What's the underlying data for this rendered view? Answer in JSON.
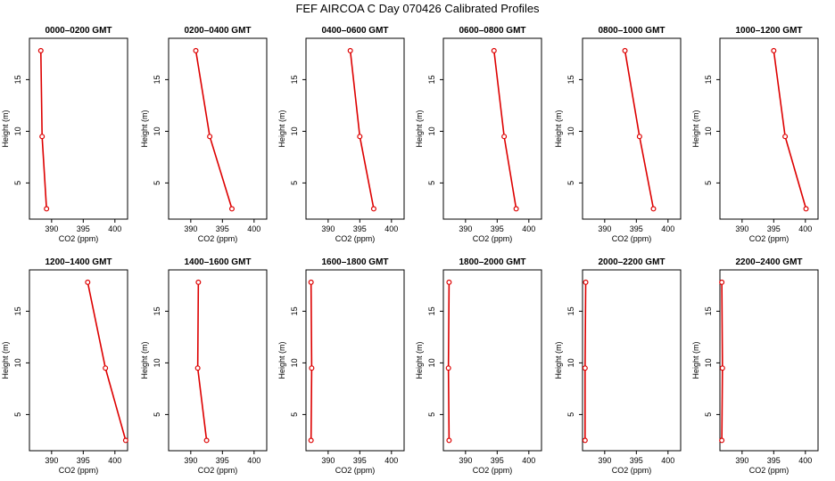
{
  "title": "FEF AIRCOA C  Day 070426  Calibrated Profiles",
  "colors": {
    "series": "#dd0000",
    "frame": "#000000"
  },
  "chart_data": {
    "type": "line",
    "xlabel": "CO2 (ppm)",
    "ylabel": "Height (m)",
    "xlim": [
      386.5,
      402
    ],
    "ylim": [
      1.5,
      19
    ],
    "xticks": [
      390,
      395,
      400
    ],
    "yticks": [
      5,
      10,
      15
    ],
    "panels": [
      {
        "title": "0000–0200 GMT",
        "points": [
          {
            "x": 388.3,
            "y": 17.8
          },
          {
            "x": 388.5,
            "y": 9.5
          },
          {
            "x": 389.2,
            "y": 2.5
          }
        ]
      },
      {
        "title": "0200–0400 GMT",
        "points": [
          {
            "x": 390.8,
            "y": 17.8
          },
          {
            "x": 393.0,
            "y": 9.5
          },
          {
            "x": 396.5,
            "y": 2.5
          }
        ]
      },
      {
        "title": "0400–0600 GMT",
        "points": [
          {
            "x": 393.5,
            "y": 17.8
          },
          {
            "x": 395.0,
            "y": 9.5
          },
          {
            "x": 397.2,
            "y": 2.5
          }
        ]
      },
      {
        "title": "0600–0800 GMT",
        "points": [
          {
            "x": 394.5,
            "y": 17.8
          },
          {
            "x": 396.1,
            "y": 9.5
          },
          {
            "x": 398.0,
            "y": 2.5
          }
        ]
      },
      {
        "title": "0800–1000 GMT",
        "points": [
          {
            "x": 393.2,
            "y": 17.8
          },
          {
            "x": 395.5,
            "y": 9.5
          },
          {
            "x": 397.7,
            "y": 2.5
          }
        ]
      },
      {
        "title": "1000–1200 GMT",
        "points": [
          {
            "x": 395.0,
            "y": 17.8
          },
          {
            "x": 396.8,
            "y": 9.5
          },
          {
            "x": 400.1,
            "y": 2.5
          }
        ]
      },
      {
        "title": "1200–1400 GMT",
        "points": [
          {
            "x": 395.7,
            "y": 17.8
          },
          {
            "x": 398.5,
            "y": 9.5
          },
          {
            "x": 401.7,
            "y": 2.5
          }
        ]
      },
      {
        "title": "1400–1600 GMT",
        "points": [
          {
            "x": 391.2,
            "y": 17.8
          },
          {
            "x": 391.1,
            "y": 9.5
          },
          {
            "x": 392.5,
            "y": 2.5
          }
        ]
      },
      {
        "title": "1600–1800 GMT",
        "points": [
          {
            "x": 387.3,
            "y": 17.8
          },
          {
            "x": 387.4,
            "y": 9.5
          },
          {
            "x": 387.3,
            "y": 2.5
          }
        ]
      },
      {
        "title": "1800–2000 GMT",
        "points": [
          {
            "x": 387.4,
            "y": 17.8
          },
          {
            "x": 387.3,
            "y": 9.5
          },
          {
            "x": 387.4,
            "y": 2.5
          }
        ]
      },
      {
        "title": "2000–2200 GMT",
        "points": [
          {
            "x": 387.0,
            "y": 17.8
          },
          {
            "x": 386.9,
            "y": 9.5
          },
          {
            "x": 386.9,
            "y": 2.5
          }
        ]
      },
      {
        "title": "2200–2400 GMT",
        "points": [
          {
            "x": 386.8,
            "y": 17.8
          },
          {
            "x": 386.9,
            "y": 9.5
          },
          {
            "x": 386.8,
            "y": 2.5
          }
        ]
      }
    ]
  }
}
